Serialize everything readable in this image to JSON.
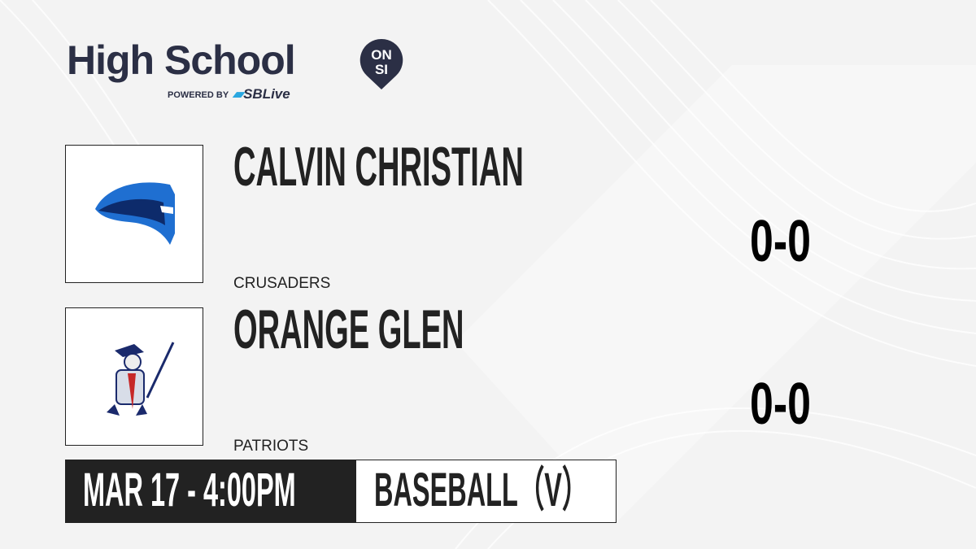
{
  "brand": {
    "title": "High School",
    "badge_top": "ON",
    "badge_bottom": "SI",
    "powered_by": "POWERED BY",
    "partner": "SBLive"
  },
  "teams": [
    {
      "name": "CALVIN CHRISTIAN",
      "mascot": "CRUSADERS",
      "score": "0-0",
      "logo_icon": "crusader-helmet-icon",
      "logo_color": "#1f6fd1"
    },
    {
      "name": "ORANGE GLEN",
      "mascot": "PATRIOTS",
      "score": "0-0",
      "logo_icon": "patriot-soldier-icon",
      "logo_color": "#c62828"
    }
  ],
  "game": {
    "datetime": "MAR 17 - 4:00PM",
    "sport": "BASEBALL（V）"
  },
  "colors": {
    "brand_navy": "#2b2f45",
    "sblive_blue": "#2aa7e0",
    "dark": "#222222"
  }
}
